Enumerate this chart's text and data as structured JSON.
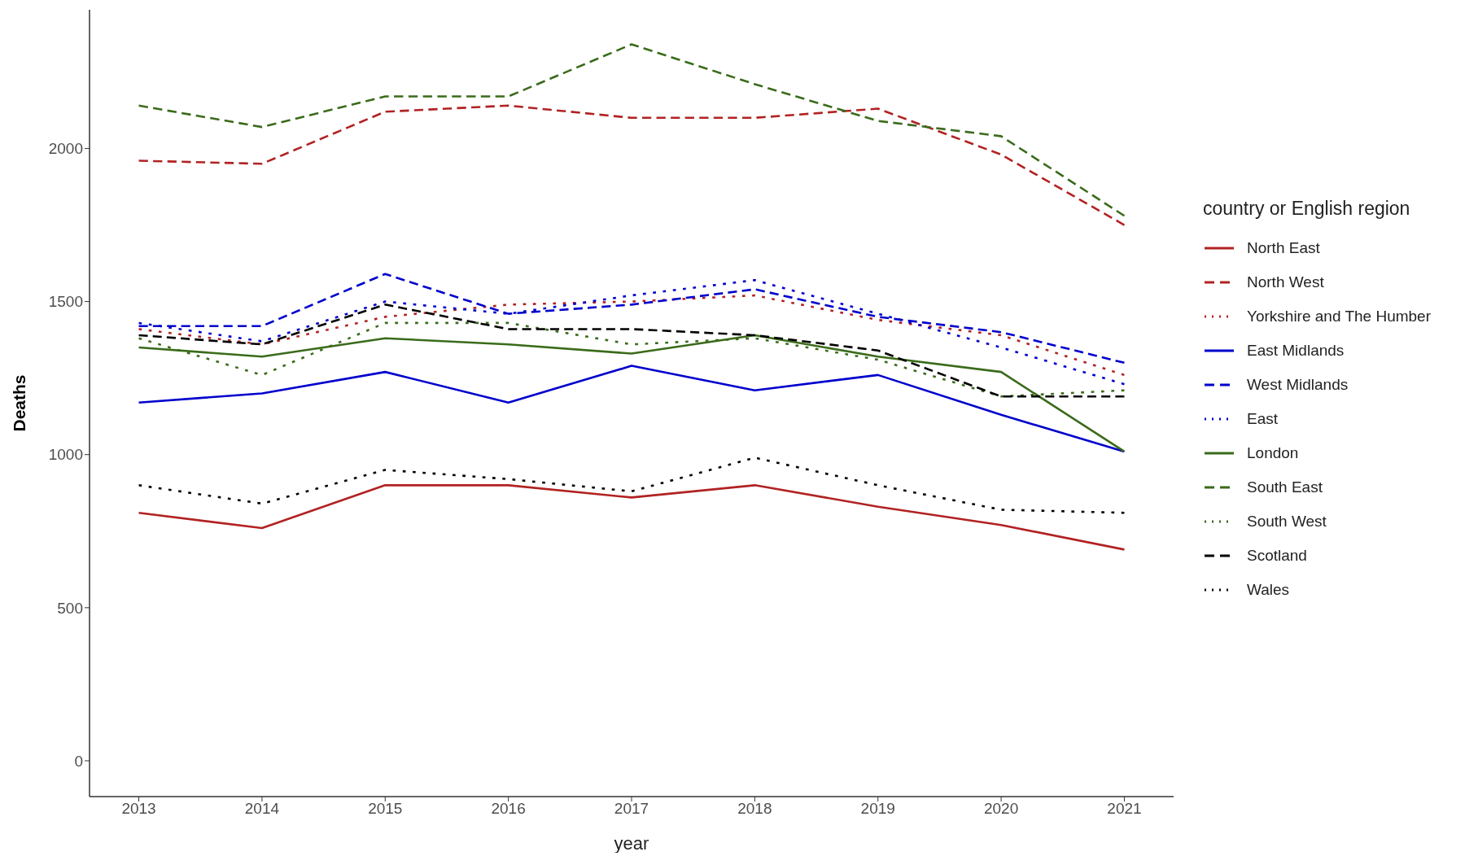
{
  "chart_data": {
    "type": "line",
    "xlabel": "year",
    "ylabel": "Deaths",
    "legend_title": "country or English region",
    "legend": "right",
    "grid": false,
    "marker": "none",
    "x": [
      2013,
      2014,
      2015,
      2016,
      2017,
      2018,
      2019,
      2020,
      2021
    ],
    "xlim": [
      2012.6,
      2021.4
    ],
    "xticks": [
      2013,
      2014,
      2015,
      2016,
      2017,
      2018,
      2019,
      2020,
      2021
    ],
    "ylim": [
      -117,
      2453
    ],
    "yticks": [
      0,
      500,
      1000,
      1500,
      2000
    ],
    "series": [
      {
        "name": "North East",
        "color": "#b22222",
        "line_style": "solid",
        "values": [
          810,
          760,
          900,
          900,
          860,
          900,
          830,
          770,
          690
        ]
      },
      {
        "name": "North West",
        "color": "#b22222",
        "line_style": "dashed",
        "values": [
          1960,
          1950,
          2120,
          2140,
          2100,
          2100,
          2130,
          1980,
          1750
        ]
      },
      {
        "name": "Yorkshire and The Humber",
        "color": "#b22222",
        "line_style": "dotted",
        "values": [
          1410,
          1360,
          1450,
          1490,
          1500,
          1520,
          1440,
          1390,
          1260
        ]
      },
      {
        "name": "East Midlands",
        "color": "#0000cd",
        "line_style": "solid",
        "values": [
          1170,
          1200,
          1270,
          1170,
          1290,
          1210,
          1260,
          1130,
          1010
        ]
      },
      {
        "name": "West Midlands",
        "color": "#0000cd",
        "line_style": "dashed",
        "values": [
          1420,
          1420,
          1590,
          1460,
          1490,
          1540,
          1450,
          1400,
          1300
        ]
      },
      {
        "name": "East",
        "color": "#0000cd",
        "line_style": "dotted",
        "values": [
          1430,
          1370,
          1500,
          1460,
          1520,
          1570,
          1460,
          1350,
          1230
        ]
      },
      {
        "name": "London",
        "color": "#3a6b1a",
        "line_style": "solid",
        "values": [
          1350,
          1320,
          1380,
          1360,
          1330,
          1390,
          1320,
          1270,
          1010
        ]
      },
      {
        "name": "South East",
        "color": "#3a6b1a",
        "line_style": "dashed",
        "values": [
          2140,
          2070,
          2170,
          2170,
          2340,
          2210,
          2090,
          2040,
          1780
        ]
      },
      {
        "name": "South West",
        "color": "#3a6b1a",
        "line_style": "dotted",
        "values": [
          1380,
          1260,
          1430,
          1430,
          1360,
          1380,
          1310,
          1190,
          1210
        ]
      },
      {
        "name": "Scotland",
        "color": "#000000",
        "line_style": "dashed",
        "values": [
          1390,
          1360,
          1490,
          1410,
          1410,
          1390,
          1340,
          1190,
          1190
        ]
      },
      {
        "name": "Wales",
        "color": "#000000",
        "line_style": "dotted",
        "values": [
          900,
          840,
          950,
          920,
          880,
          990,
          900,
          820,
          810
        ]
      }
    ]
  }
}
